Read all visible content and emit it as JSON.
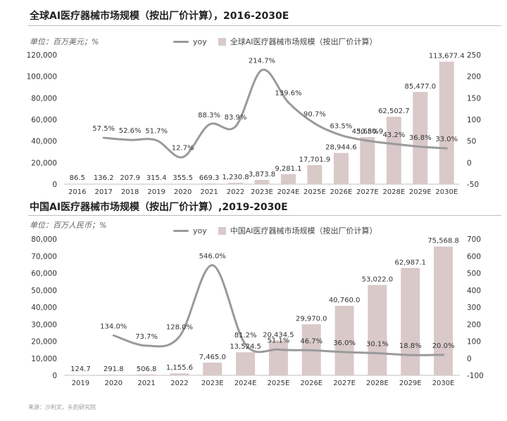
{
  "charts": {
    "global": {
      "title": "全球AI医疗器械市场规模（按出厂价计算），2016-2030E",
      "unit": "单位：百万美元；%"
    },
    "china": {
      "title": "中国AI医疗器械市场规模（按出厂价计算）,2019-2030E",
      "unit": "单位：百万人民币；%"
    }
  },
  "source": "来源：沙利文，头豹研究院",
  "colors": {
    "bar": "#d9c9c9",
    "line": "#9a9a9a",
    "text": "#333333"
  },
  "chart_data": [
    {
      "type": "bar",
      "title": "全球AI医疗器械市场规模（按出厂价计算），2016-2030E",
      "categories": [
        "2016",
        "2017",
        "2018",
        "2019",
        "2020",
        "2021",
        "2022",
        "2023E",
        "2024E",
        "2025E",
        "2026E",
        "2027E",
        "2028E",
        "2029E",
        "2030E"
      ],
      "series": [
        {
          "name": "全球AI医疗器械市场规模（按出厂价计算）",
          "type": "bar",
          "axis": "left",
          "values": [
            86.5,
            136.2,
            207.9,
            315.4,
            355.5,
            669.3,
            1230.8,
            3873.8,
            9281.1,
            17701.9,
            28944.6,
            43650.9,
            62502.7,
            85477.0,
            113677.4
          ],
          "labels": [
            "86.5",
            "136.2",
            "207.9",
            "315.4",
            "355.5",
            "669.3",
            "1,230.8",
            "3,873.8",
            "9,281.1",
            "17,701.9",
            "28,944.6",
            "43,650.9",
            "62,502.7",
            "85,477.0",
            "113,677.4"
          ]
        },
        {
          "name": "yoy",
          "type": "line",
          "axis": "right",
          "values": [
            null,
            57.5,
            52.6,
            51.7,
            12.7,
            88.3,
            83.9,
            214.7,
            139.6,
            90.7,
            63.5,
            50.8,
            43.2,
            36.8,
            33.0
          ],
          "labels": [
            "",
            "57.5%",
            "52.6%",
            "51.7%",
            "12.7%",
            "88.3%",
            "83.9%",
            "214.7%",
            "139.6%",
            "90.7%",
            "63.5%",
            "50.8%",
            "43.2%",
            "36.8%",
            "33.0%"
          ]
        }
      ],
      "ylim": [
        0,
        120000
      ],
      "yticks": [
        "0",
        "20,000",
        "40,000",
        "60,000",
        "80,000",
        "100,000",
        "120,000"
      ],
      "y2lim": [
        -50,
        250
      ],
      "y2ticks": [
        "-50",
        "0",
        "50",
        "100",
        "150",
        "200",
        "250"
      ],
      "legend": [
        "yoy",
        "全球AI医疗器械市场规模（按出厂价计算）"
      ]
    },
    {
      "type": "bar",
      "title": "中国AI医疗器械市场规模（按出厂价计算）,2019-2030E",
      "categories": [
        "2019",
        "2020",
        "2021",
        "2022",
        "2023E",
        "2024E",
        "2025E",
        "2026E",
        "2027E",
        "2028E",
        "2029E",
        "2030E"
      ],
      "series": [
        {
          "name": "中国AI医疗器械市场规模（按出厂价计算）",
          "type": "bar",
          "axis": "left",
          "values": [
            124.7,
            291.8,
            506.8,
            1155.6,
            7465.0,
            13524.5,
            20434.5,
            29970.0,
            40760.0,
            53022.0,
            62987.1,
            75568.8
          ],
          "labels": [
            "124.7",
            "291.8",
            "506.8",
            "1,155.6",
            "7,465.0",
            "13,524.5",
            "20,434.5",
            "29,970.0",
            "40,760.0",
            "53,022.0",
            "62,987.1",
            "75,568.8"
          ]
        },
        {
          "name": "yoy",
          "type": "line",
          "axis": "right",
          "values": [
            null,
            134.0,
            73.7,
            128.0,
            546.0,
            81.2,
            51.1,
            46.7,
            36.0,
            30.1,
            18.8,
            20.0
          ],
          "labels": [
            "",
            "134.0%",
            "73.7%",
            "128.0%",
            "546.0%",
            "81.2%",
            "51.1%",
            "46.7%",
            "36.0%",
            "30.1%",
            "18.8%",
            "20.0%"
          ]
        }
      ],
      "ylim": [
        0,
        80000
      ],
      "yticks": [
        "0",
        "10,000",
        "20,000",
        "30,000",
        "40,000",
        "50,000",
        "60,000",
        "70,000",
        "80,000"
      ],
      "y2lim": [
        -100,
        700
      ],
      "y2ticks": [
        "-100",
        "0",
        "100",
        "200",
        "300",
        "400",
        "500",
        "600",
        "700"
      ],
      "legend": [
        "yoy",
        "中国AI医疗器械市场规模（按出厂价计算）"
      ]
    }
  ]
}
